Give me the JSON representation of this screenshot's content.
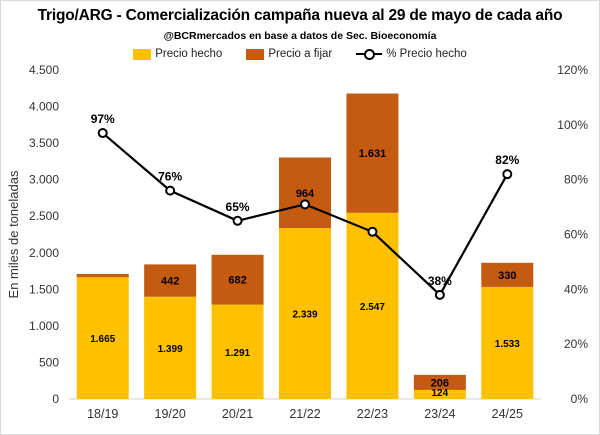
{
  "title": "Trigo/ARG - Comercialización campaña nueva al 29 de mayo de cada año",
  "subtitle": "@BCRmercados en base a datos de Sec. Bioeconomía",
  "chart_data": {
    "type": "bar",
    "stacked": true,
    "categories": [
      "18/19",
      "19/20",
      "20/21",
      "21/22",
      "22/23",
      "23/24",
      "24/25"
    ],
    "series": [
      {
        "name": "Precio hecho",
        "color": "#FFC000",
        "values": [
          1665,
          1399,
          1291,
          2339,
          2547,
          124,
          1533
        ],
        "labels": [
          "1.665",
          "1.399",
          "1.291",
          "2.339",
          "2.547",
          "124",
          "1.533"
        ],
        "label_color": "#000000"
      },
      {
        "name": "Precio a fijar",
        "color": "#C55A11",
        "values": [
          45,
          442,
          682,
          964,
          1631,
          206,
          330
        ],
        "labels": [
          "",
          "442",
          "682",
          "964",
          "1.631",
          "206",
          "330"
        ],
        "label_color": "#000000"
      }
    ],
    "line": {
      "name": "% Precio hecho",
      "axis": "secondary",
      "color": "#000000",
      "values": [
        97,
        76,
        65,
        71,
        61,
        38,
        82
      ],
      "labels": [
        "97%",
        "76%",
        "65%",
        "",
        "",
        "38%",
        "82%"
      ]
    },
    "ylabel": "En miles de toneladas",
    "xlabel": "",
    "ylim": [
      0,
      4500
    ],
    "yticks": [
      0,
      500,
      1000,
      1500,
      2000,
      2500,
      3000,
      3500,
      4000,
      4500
    ],
    "ytick_labels": [
      "0",
      "500",
      "1.000",
      "1.500",
      "2.000",
      "2.500",
      "3.000",
      "3.500",
      "4.000",
      "4.500"
    ],
    "y2lim": [
      0,
      120
    ],
    "y2ticks": [
      0,
      20,
      40,
      60,
      80,
      100,
      120
    ],
    "y2tick_labels": [
      "0%",
      "20%",
      "40%",
      "60%",
      "80%",
      "100%",
      "120%"
    ],
    "grid": false,
    "legend_position": "top"
  }
}
